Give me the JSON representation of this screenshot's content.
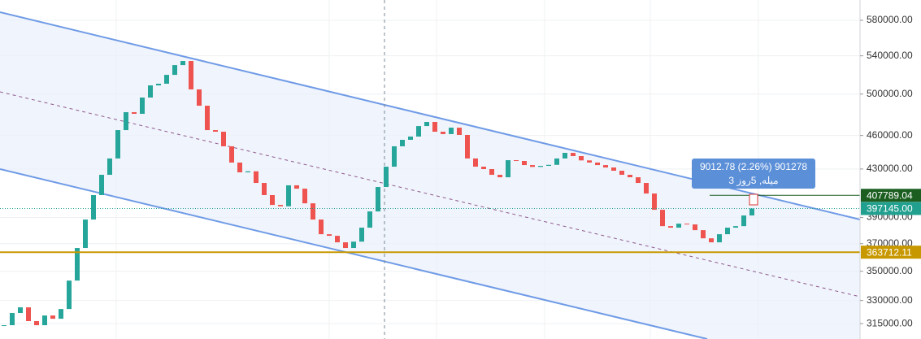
{
  "chart_data": {
    "type": "candlestick",
    "log_scale": true,
    "grid": true,
    "ylim": [
      305400,
      604200
    ],
    "yticks": [
      {
        "value": 580000,
        "label": "580000.00"
      },
      {
        "value": 540000,
        "label": "540000.00"
      },
      {
        "value": 500000,
        "label": "500000.00"
      },
      {
        "value": 460000,
        "label": "460000.00"
      },
      {
        "value": 430000,
        "label": "430000.00"
      },
      {
        "value": 390000,
        "label": "390000.00"
      },
      {
        "value": 370000,
        "label": "370000.00"
      },
      {
        "value": 350000,
        "label": "350000.00"
      },
      {
        "value": 330000,
        "label": "330000.00"
      },
      {
        "value": 315000,
        "label": "315000.00"
      }
    ],
    "up_color": "#26a69a",
    "down_color": "#ef5350",
    "series": [
      {
        "name": null,
        "values": [
          314000,
          321800,
          325500,
          316600,
          314000,
          320200,
          318100,
          324400,
          343500,
          366800,
          388400,
          408000,
          425000,
          439200,
          465000,
          482100,
          480500,
          496500,
          508800,
          510500,
          519700,
          530000,
          534400,
          504700,
          488400,
          465000,
          463500,
          450100,
          435600,
          427100,
          428000,
          418100,
          408000,
          400000,
          398900,
          416100,
          413300,
          401300,
          388400,
          377100,
          375900,
          371000,
          366800,
          371500,
          382100,
          394800,
          414700,
          432000,
          450100,
          456000,
          459000,
          468800,
          472700,
          463500,
          461300,
          467300,
          460500,
          439200,
          432000,
          429900,
          425000,
          422900,
          437700,
          437000,
          433400,
          431800,
          432700,
          433600,
          439200,
          444200,
          441300,
          437500,
          435600,
          433400,
          431300,
          428500,
          425000,
          422900,
          418100,
          409300,
          396100,
          383300,
          382100,
          385200,
          384600,
          380200,
          374000,
          371000,
          377100,
          382100,
          383300,
          391600,
          397145
        ]
      }
    ],
    "price_lines": [
      {
        "value": 407789.04,
        "label": "407789.04",
        "color": "#1b5e20"
      },
      {
        "value": 397145,
        "label": "397145.00",
        "color": "#22a08f"
      },
      {
        "value": 363712.11,
        "label": "363712.11",
        "color": "#c89800"
      }
    ],
    "annotations": [
      "9012.78 (2.26%) 901278",
      "میله, 5روز 3"
    ]
  }
}
